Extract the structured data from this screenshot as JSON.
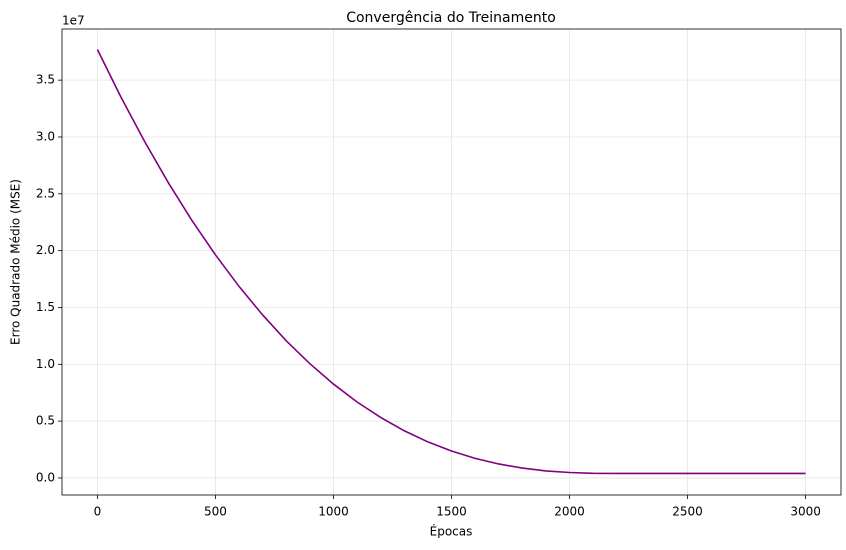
{
  "chart_data": {
    "type": "line",
    "title": "Convergência do Treinamento",
    "x_label": "Épocas",
    "y_label": "Erro Quadrado Médio (MSE)",
    "y_offset_label": "1e7",
    "x": [
      0,
      100,
      200,
      300,
      400,
      500,
      600,
      700,
      800,
      900,
      1000,
      1100,
      1200,
      1300,
      1400,
      1500,
      1600,
      1700,
      1800,
      1900,
      2000,
      2100,
      2200,
      2300,
      2400,
      2500,
      2600,
      2700,
      2800,
      2900,
      3000
    ],
    "series": [
      {
        "name": "MSE",
        "color": "#800080",
        "values": [
          37700000,
          33500000,
          29600000,
          25990000,
          22670000,
          19630000,
          16850000,
          14340000,
          12070000,
          10050000,
          8260000,
          6680000,
          5320000,
          4150000,
          3170000,
          2370000,
          1720000,
          1230000,
          870000,
          620000,
          480000,
          410000,
          400000,
          400000,
          400000,
          400000,
          400000,
          400000,
          400000,
          400000,
          400000
        ]
      }
    ],
    "xlim": [
      -150,
      3150
    ],
    "ylim": [
      -1500000,
      39500000
    ],
    "xticks": [
      0,
      500,
      1000,
      1500,
      2000,
      2500,
      3000
    ],
    "yticks": [
      {
        "value": 0,
        "label": "0.0"
      },
      {
        "value": 5000000,
        "label": "0.5"
      },
      {
        "value": 10000000,
        "label": "1.0"
      },
      {
        "value": 15000000,
        "label": "1.5"
      },
      {
        "value": 20000000,
        "label": "2.0"
      },
      {
        "value": 25000000,
        "label": "2.5"
      },
      {
        "value": 30000000,
        "label": "3.0"
      },
      {
        "value": 35000000,
        "label": "3.5"
      }
    ],
    "grid": true
  }
}
